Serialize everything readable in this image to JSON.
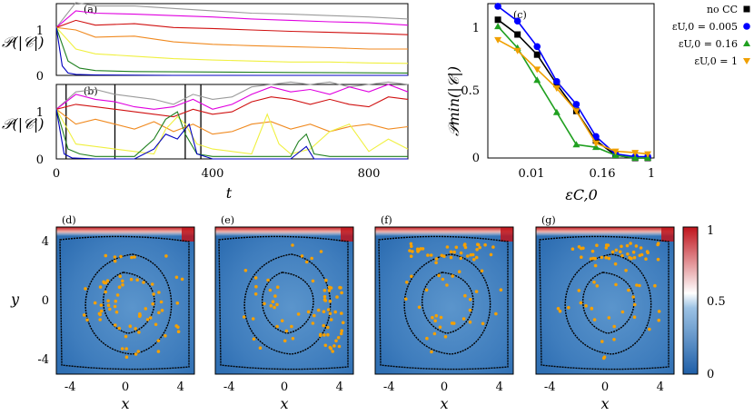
{
  "colors": {
    "grey": "#9a9a9a",
    "magenta": "#e000e0",
    "red": "#d01010",
    "orange": "#f08a20",
    "yellow": "#f0f040",
    "green": "#208020",
    "blue": "#0000c0",
    "cmap_low": "#2a6db5",
    "cmap_mid": "#ffffff",
    "cmap_high": "#c0141c",
    "particle": "#f5a000",
    "contour": "#000000"
  },
  "labels": {
    "panel_a": "(a)",
    "panel_b": "(b)",
    "panel_c": "(c)",
    "panel_d": "(d)",
    "panel_e": "(e)",
    "panel_f": "(f)",
    "panel_g": "(g)",
    "ylabel_ab": "𝒫(|𝒞|)",
    "xlabel_ab": "t",
    "ylabel_c": "𝒫min(|𝒞|)",
    "xlabel_c": "εC,0",
    "xlabel_maps": "x",
    "ylabel_maps": "y"
  },
  "chart_data": [
    {
      "panel": "a",
      "type": "line",
      "xlim": [
        0,
        900
      ],
      "ylim": [
        0,
        1.5
      ],
      "yticks": [
        "0",
        "1"
      ],
      "series": [
        {
          "color": "grey",
          "x": [
            0,
            50,
            100,
            200,
            300,
            400,
            500,
            600,
            700,
            800,
            900
          ],
          "y": [
            1.0,
            1.52,
            1.45,
            1.45,
            1.4,
            1.35,
            1.3,
            1.28,
            1.25,
            1.22,
            1.18
          ]
        },
        {
          "color": "magenta",
          "x": [
            0,
            50,
            100,
            200,
            300,
            400,
            500,
            600,
            700,
            800,
            900
          ],
          "y": [
            1.0,
            1.35,
            1.3,
            1.28,
            1.25,
            1.22,
            1.18,
            1.15,
            1.12,
            1.1,
            1.05
          ]
        },
        {
          "color": "red",
          "x": [
            0,
            50,
            100,
            200,
            300,
            400,
            500,
            600,
            700,
            800,
            900
          ],
          "y": [
            1.0,
            1.15,
            1.05,
            1.08,
            1.0,
            0.98,
            0.95,
            0.92,
            0.9,
            0.88,
            0.85
          ]
        },
        {
          "color": "orange",
          "x": [
            0,
            50,
            100,
            200,
            300,
            400,
            500,
            600,
            700,
            800,
            900
          ],
          "y": [
            1.0,
            0.95,
            0.8,
            0.82,
            0.7,
            0.65,
            0.62,
            0.6,
            0.58,
            0.55,
            0.55
          ]
        },
        {
          "color": "yellow",
          "x": [
            0,
            50,
            100,
            200,
            300,
            400,
            500,
            600,
            700,
            800,
            900
          ],
          "y": [
            1.0,
            0.55,
            0.45,
            0.4,
            0.35,
            0.32,
            0.3,
            0.28,
            0.28,
            0.26,
            0.25
          ]
        },
        {
          "color": "green",
          "x": [
            0,
            30,
            60,
            100,
            200,
            400,
            600,
            900
          ],
          "y": [
            1.0,
            0.3,
            0.15,
            0.1,
            0.08,
            0.07,
            0.06,
            0.05
          ]
        },
        {
          "color": "blue",
          "x": [
            0,
            15,
            30,
            50,
            100,
            300,
            900
          ],
          "y": [
            1.0,
            0.2,
            0.05,
            0.02,
            0.01,
            0.0,
            0.0
          ]
        }
      ]
    },
    {
      "panel": "b",
      "type": "line",
      "xlim": [
        0,
        900
      ],
      "ylim": [
        0,
        1.5
      ],
      "xticks": [
        "0",
        "400",
        "800"
      ],
      "yticks": [
        "0",
        "1"
      ],
      "vlines": [
        25,
        150,
        330,
        370
      ],
      "series": [
        {
          "color": "grey",
          "x": [
            0,
            50,
            100,
            150,
            200,
            250,
            300,
            350,
            400,
            450,
            500,
            550,
            600,
            650,
            700,
            750,
            800,
            850,
            900
          ],
          "y": [
            1.0,
            1.35,
            1.4,
            1.3,
            1.25,
            1.2,
            1.1,
            1.3,
            1.2,
            1.25,
            1.45,
            1.5,
            1.55,
            1.5,
            1.55,
            1.45,
            1.5,
            1.55,
            1.5
          ]
        },
        {
          "color": "magenta",
          "x": [
            0,
            50,
            100,
            150,
            200,
            250,
            300,
            350,
            400,
            450,
            500,
            550,
            600,
            650,
            700,
            750,
            800,
            850,
            900
          ],
          "y": [
            1.0,
            1.3,
            1.2,
            1.15,
            1.05,
            1.0,
            1.05,
            1.2,
            1.0,
            1.1,
            1.3,
            1.45,
            1.35,
            1.4,
            1.3,
            1.45,
            1.35,
            1.5,
            1.35
          ]
        },
        {
          "color": "red",
          "x": [
            0,
            50,
            100,
            150,
            200,
            250,
            300,
            350,
            400,
            450,
            500,
            550,
            600,
            650,
            700,
            750,
            800,
            850,
            900
          ],
          "y": [
            1.0,
            1.1,
            1.05,
            1.0,
            0.95,
            0.9,
            0.85,
            1.0,
            0.9,
            0.95,
            1.15,
            1.25,
            1.2,
            1.1,
            1.2,
            1.1,
            1.05,
            1.25,
            1.2
          ]
        },
        {
          "color": "orange",
          "x": [
            0,
            50,
            100,
            150,
            200,
            250,
            300,
            350,
            400,
            450,
            500,
            550,
            600,
            650,
            700,
            750,
            800,
            850,
            900
          ],
          "y": [
            1.0,
            0.7,
            0.8,
            0.7,
            0.6,
            0.75,
            0.55,
            0.7,
            0.5,
            0.55,
            0.7,
            0.75,
            0.6,
            0.7,
            0.55,
            0.65,
            0.7,
            0.6,
            0.65
          ]
        },
        {
          "color": "yellow",
          "x": [
            0,
            50,
            100,
            150,
            200,
            250,
            280,
            310,
            330,
            360,
            400,
            450,
            500,
            540,
            570,
            600,
            650,
            700,
            750,
            800,
            850,
            900
          ],
          "y": [
            1.0,
            0.3,
            0.25,
            0.2,
            0.15,
            0.1,
            0.6,
            0.85,
            0.7,
            0.3,
            0.2,
            0.15,
            0.1,
            0.9,
            0.3,
            0.1,
            0.2,
            0.55,
            0.7,
            0.15,
            0.4,
            0.2
          ]
        },
        {
          "color": "green",
          "x": [
            0,
            30,
            60,
            100,
            200,
            250,
            280,
            310,
            330,
            360,
            400,
            500,
            600,
            620,
            640,
            660,
            700,
            800,
            900
          ],
          "y": [
            1.0,
            0.2,
            0.1,
            0.05,
            0.05,
            0.4,
            0.8,
            0.95,
            0.5,
            0.1,
            0.05,
            0.05,
            0.05,
            0.35,
            0.5,
            0.1,
            0.05,
            0.05,
            0.05
          ]
        },
        {
          "color": "blue",
          "x": [
            0,
            20,
            40,
            100,
            200,
            250,
            280,
            310,
            340,
            360,
            400,
            600,
            640,
            660,
            900
          ],
          "y": [
            1.0,
            0.1,
            0.02,
            0.0,
            0.0,
            0.2,
            0.5,
            0.4,
            0.7,
            0.1,
            0.0,
            0.0,
            0.25,
            0.0,
            0.0
          ]
        }
      ]
    },
    {
      "panel": "c",
      "type": "line",
      "xscale": "log",
      "ylim": [
        0,
        1.15
      ],
      "xticks": [
        "0.01",
        "0.16",
        "1"
      ],
      "yticks": [
        "0",
        "0.5",
        "1"
      ],
      "legend": "right",
      "series": [
        {
          "name": "no CC",
          "color": "#000000",
          "marker": "square",
          "x": [
            0.005,
            0.01,
            0.02,
            0.04,
            0.08,
            0.16,
            0.32,
            0.64,
            1.0
          ],
          "y": [
            1.03,
            0.92,
            0.77,
            0.55,
            0.35,
            0.13,
            0.02,
            0.0,
            0.0
          ]
        },
        {
          "name": "εU,0 = 0.005",
          "color": "#0000ff",
          "marker": "circle",
          "x": [
            0.005,
            0.01,
            0.02,
            0.04,
            0.08,
            0.16,
            0.32,
            0.64,
            1.0
          ],
          "y": [
            1.13,
            1.02,
            0.83,
            0.57,
            0.4,
            0.16,
            0.03,
            0.01,
            0.01
          ]
        },
        {
          "name": "εU,0 = 0.16",
          "color": "#20a020",
          "marker": "triangle",
          "x": [
            0.005,
            0.01,
            0.02,
            0.04,
            0.08,
            0.16,
            0.32,
            0.64,
            1.0
          ],
          "y": [
            0.98,
            0.82,
            0.58,
            0.34,
            0.1,
            0.08,
            0.02,
            0.0,
            0.0
          ]
        },
        {
          "name": "εU,0 = 1",
          "color": "#f0a000",
          "marker": "triangle-down",
          "x": [
            0.005,
            0.01,
            0.02,
            0.04,
            0.08,
            0.16,
            0.32,
            0.64,
            1.0
          ],
          "y": [
            0.88,
            0.8,
            0.66,
            0.52,
            0.35,
            0.11,
            0.05,
            0.04,
            0.03
          ]
        }
      ]
    },
    {
      "panel": "d-g",
      "type": "heatmap",
      "xlim": [
        -5,
        5
      ],
      "ylim": [
        -5,
        5
      ],
      "xticks": [
        "-4",
        "0",
        "4"
      ],
      "yticks": [
        "-4",
        "0",
        "4"
      ],
      "colorbar": {
        "min": 0,
        "max": 1,
        "ticks": [
          "0",
          "0.5",
          "1"
        ]
      }
    }
  ]
}
